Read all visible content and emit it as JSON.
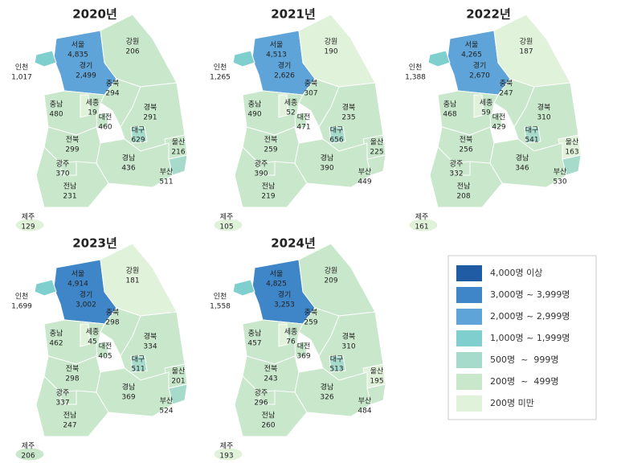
{
  "maps": [
    {
      "title": "2020년",
      "regions": [
        {
          "name": "서울",
          "value": "4,835",
          "color": "#1f5ca3"
        },
        {
          "name": "경기",
          "value": "2,499",
          "color": "#5ea4d8"
        },
        {
          "name": "인천",
          "value": "1,017",
          "color": "#7fcfcf"
        },
        {
          "name": "강원",
          "value": "206",
          "color": "#c8e7cb"
        },
        {
          "name": "충북",
          "value": "294",
          "color": "#c8e7cb"
        },
        {
          "name": "충남",
          "value": "480",
          "color": "#c8e7cb"
        },
        {
          "name": "세종",
          "value": "19",
          "color": "#e1f2da"
        },
        {
          "name": "대전",
          "value": "460",
          "color": "#c8e7cb"
        },
        {
          "name": "경북",
          "value": "291",
          "color": "#c8e7cb"
        },
        {
          "name": "대구",
          "value": "629",
          "color": "#a6dbcc"
        },
        {
          "name": "울산",
          "value": "216",
          "color": "#c8e7cb"
        },
        {
          "name": "전북",
          "value": "299",
          "color": "#c8e7cb"
        },
        {
          "name": "경남",
          "value": "436",
          "color": "#c8e7cb"
        },
        {
          "name": "부산",
          "value": "511",
          "color": "#a6dbcc"
        },
        {
          "name": "광주",
          "value": "370",
          "color": "#c8e7cb"
        },
        {
          "name": "전남",
          "value": "231",
          "color": "#c8e7cb"
        },
        {
          "name": "제주",
          "value": "129",
          "color": "#e1f2da"
        }
      ]
    },
    {
      "title": "2021년",
      "regions": [
        {
          "name": "서울",
          "value": "4,513",
          "color": "#1f5ca3"
        },
        {
          "name": "경기",
          "value": "2,626",
          "color": "#5ea4d8"
        },
        {
          "name": "인천",
          "value": "1,265",
          "color": "#7fcfcf"
        },
        {
          "name": "강원",
          "value": "190",
          "color": "#e1f2da"
        },
        {
          "name": "충북",
          "value": "307",
          "color": "#c8e7cb"
        },
        {
          "name": "충남",
          "value": "490",
          "color": "#c8e7cb"
        },
        {
          "name": "세종",
          "value": "52",
          "color": "#e1f2da"
        },
        {
          "name": "대전",
          "value": "471",
          "color": "#c8e7cb"
        },
        {
          "name": "경북",
          "value": "235",
          "color": "#c8e7cb"
        },
        {
          "name": "대구",
          "value": "656",
          "color": "#a6dbcc"
        },
        {
          "name": "울산",
          "value": "225",
          "color": "#c8e7cb"
        },
        {
          "name": "전북",
          "value": "259",
          "color": "#c8e7cb"
        },
        {
          "name": "경남",
          "value": "390",
          "color": "#c8e7cb"
        },
        {
          "name": "부산",
          "value": "449",
          "color": "#c8e7cb"
        },
        {
          "name": "광주",
          "value": "390",
          "color": "#c8e7cb"
        },
        {
          "name": "전남",
          "value": "219",
          "color": "#c8e7cb"
        },
        {
          "name": "제주",
          "value": "105",
          "color": "#e1f2da"
        }
      ]
    },
    {
      "title": "2022년",
      "regions": [
        {
          "name": "서울",
          "value": "4,265",
          "color": "#1f5ca3"
        },
        {
          "name": "경기",
          "value": "2,670",
          "color": "#5ea4d8"
        },
        {
          "name": "인천",
          "value": "1,388",
          "color": "#7fcfcf"
        },
        {
          "name": "강원",
          "value": "187",
          "color": "#e1f2da"
        },
        {
          "name": "충북",
          "value": "247",
          "color": "#c8e7cb"
        },
        {
          "name": "충남",
          "value": "468",
          "color": "#c8e7cb"
        },
        {
          "name": "세종",
          "value": "59",
          "color": "#e1f2da"
        },
        {
          "name": "대전",
          "value": "429",
          "color": "#c8e7cb"
        },
        {
          "name": "경북",
          "value": "310",
          "color": "#c8e7cb"
        },
        {
          "name": "대구",
          "value": "541",
          "color": "#a6dbcc"
        },
        {
          "name": "울산",
          "value": "163",
          "color": "#e1f2da"
        },
        {
          "name": "전북",
          "value": "256",
          "color": "#c8e7cb"
        },
        {
          "name": "경남",
          "value": "346",
          "color": "#c8e7cb"
        },
        {
          "name": "부산",
          "value": "530",
          "color": "#a6dbcc"
        },
        {
          "name": "광주",
          "value": "332",
          "color": "#c8e7cb"
        },
        {
          "name": "전남",
          "value": "208",
          "color": "#c8e7cb"
        },
        {
          "name": "제주",
          "value": "161",
          "color": "#e1f2da"
        }
      ]
    },
    {
      "title": "2023년",
      "regions": [
        {
          "name": "서울",
          "value": "4,914",
          "color": "#1f5ca3"
        },
        {
          "name": "경기",
          "value": "3,002",
          "color": "#3f86c8"
        },
        {
          "name": "인천",
          "value": "1,699",
          "color": "#7fcfcf"
        },
        {
          "name": "강원",
          "value": "181",
          "color": "#e1f2da"
        },
        {
          "name": "충북",
          "value": "298",
          "color": "#c8e7cb"
        },
        {
          "name": "충남",
          "value": "462",
          "color": "#c8e7cb"
        },
        {
          "name": "세종",
          "value": "45",
          "color": "#e1f2da"
        },
        {
          "name": "대전",
          "value": "405",
          "color": "#c8e7cb"
        },
        {
          "name": "경북",
          "value": "334",
          "color": "#c8e7cb"
        },
        {
          "name": "대구",
          "value": "511",
          "color": "#a6dbcc"
        },
        {
          "name": "울산",
          "value": "201",
          "color": "#c8e7cb"
        },
        {
          "name": "전북",
          "value": "298",
          "color": "#c8e7cb"
        },
        {
          "name": "경남",
          "value": "369",
          "color": "#c8e7cb"
        },
        {
          "name": "부산",
          "value": "524",
          "color": "#a6dbcc"
        },
        {
          "name": "광주",
          "value": "337",
          "color": "#c8e7cb"
        },
        {
          "name": "전남",
          "value": "247",
          "color": "#c8e7cb"
        },
        {
          "name": "제주",
          "value": "206",
          "color": "#c8e7cb"
        }
      ]
    },
    {
      "title": "2024년",
      "regions": [
        {
          "name": "서울",
          "value": "4,825",
          "color": "#1f5ca3"
        },
        {
          "name": "경기",
          "value": "3,253",
          "color": "#3f86c8"
        },
        {
          "name": "인천",
          "value": "1,558",
          "color": "#7fcfcf"
        },
        {
          "name": "강원",
          "value": "209",
          "color": "#c8e7cb"
        },
        {
          "name": "충북",
          "value": "259",
          "color": "#c8e7cb"
        },
        {
          "name": "충남",
          "value": "457",
          "color": "#c8e7cb"
        },
        {
          "name": "세종",
          "value": "76",
          "color": "#e1f2da"
        },
        {
          "name": "대전",
          "value": "369",
          "color": "#c8e7cb"
        },
        {
          "name": "경북",
          "value": "310",
          "color": "#c8e7cb"
        },
        {
          "name": "대구",
          "value": "513",
          "color": "#a6dbcc"
        },
        {
          "name": "울산",
          "value": "195",
          "color": "#e1f2da"
        },
        {
          "name": "전북",
          "value": "243",
          "color": "#c8e7cb"
        },
        {
          "name": "경남",
          "value": "326",
          "color": "#c8e7cb"
        },
        {
          "name": "부산",
          "value": "484",
          "color": "#c8e7cb"
        },
        {
          "name": "광주",
          "value": "296",
          "color": "#c8e7cb"
        },
        {
          "name": "전남",
          "value": "260",
          "color": "#c8e7cb"
        },
        {
          "name": "제주",
          "value": "193",
          "color": "#e1f2da"
        }
      ]
    }
  ],
  "legend": [
    {
      "label": "4,000명 이상",
      "color": "#1f5ca3"
    },
    {
      "label": "3,000명 ~ 3,999명",
      "color": "#3f86c8"
    },
    {
      "label": "2,000명 ~ 2,999명",
      "color": "#5ea4d8"
    },
    {
      "label": "1,000명 ~ 1,999명",
      "color": "#7fcfcf"
    },
    {
      "label": "500명  ~  999명",
      "color": "#a6dbcc"
    },
    {
      "label": "200명  ~  499명",
      "color": "#c8e7cb"
    },
    {
      "label": "200명 미만",
      "color": "#e1f2da"
    }
  ]
}
